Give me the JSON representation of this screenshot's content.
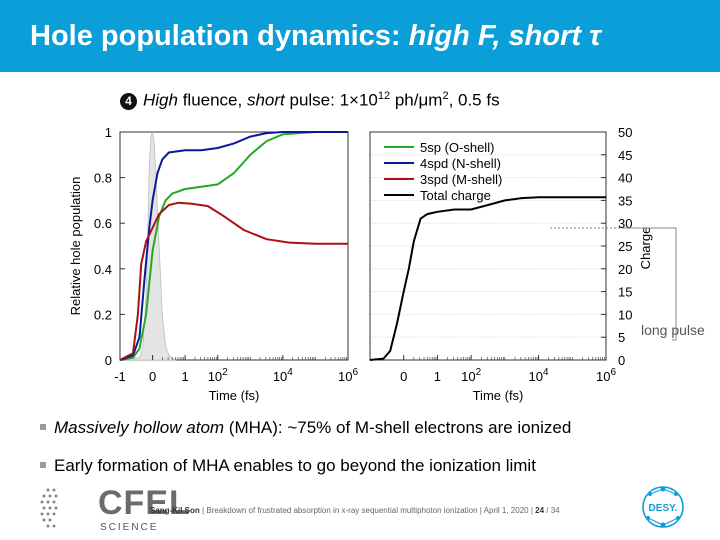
{
  "header": {
    "title_plain": "Hole population dynamics: ",
    "title_italic": "high F, short τ"
  },
  "subtitle": {
    "number": "4",
    "high": "High",
    "fluence": " fluence, ",
    "short": "short",
    "rest1": " pulse: 1×10",
    "exp": "12",
    "rest2": " ph/μm",
    "exp2": "2",
    "rest3": ", 0.5 fs"
  },
  "chart_data": [
    {
      "type": "line",
      "xscale": "log-like (hybrid linear near 0)",
      "xlabel": "Time (fs)",
      "ylabel": "Relative hole population",
      "xticks": [
        "-1",
        "0",
        "1",
        "10",
        "10",
        "10"
      ],
      "xtick_exps": [
        "",
        "",
        "",
        "2",
        "4",
        "6"
      ],
      "yticks": [
        "0",
        "0.2",
        "0.4",
        "0.6",
        "0.8",
        "1"
      ],
      "ylim": [
        0,
        1
      ],
      "grid": false,
      "series": [
        {
          "key": "pulse",
          "color": "#bdbdbd",
          "fill": true,
          "points": [
            [
              -1,
              0
            ],
            [
              -0.4,
              0.01
            ],
            [
              -0.3,
              0.05
            ],
            [
              -0.2,
              0.3
            ],
            [
              -0.15,
              0.55
            ],
            [
              -0.1,
              0.85
            ],
            [
              -0.05,
              0.98
            ],
            [
              0,
              1
            ],
            [
              0.05,
              0.95
            ],
            [
              0.1,
              0.82
            ],
            [
              0.2,
              0.5
            ],
            [
              0.3,
              0.2
            ],
            [
              0.4,
              0.06
            ],
            [
              0.5,
              0.02
            ],
            [
              0.7,
              0
            ]
          ]
        },
        {
          "key": "green",
          "color": "#22aa22",
          "points": [
            [
              -1,
              0
            ],
            [
              -0.6,
              0.01
            ],
            [
              -0.4,
              0.05
            ],
            [
              -0.2,
              0.2
            ],
            [
              0,
              0.48
            ],
            [
              0.2,
              0.63
            ],
            [
              0.4,
              0.7
            ],
            [
              0.6,
              0.73
            ],
            [
              1,
              0.75
            ],
            [
              1.5,
              0.76
            ],
            [
              2,
              0.77
            ],
            [
              2.5,
              0.82
            ],
            [
              3,
              0.9
            ],
            [
              3.5,
              0.96
            ],
            [
              4,
              0.99
            ],
            [
              5,
              1
            ],
            [
              6,
              1
            ]
          ]
        },
        {
          "key": "blue",
          "color": "#0a1a9a",
          "points": [
            [
              -1,
              0
            ],
            [
              -0.6,
              0.02
            ],
            [
              -0.4,
              0.1
            ],
            [
              -0.25,
              0.35
            ],
            [
              -0.1,
              0.58
            ],
            [
              0,
              0.7
            ],
            [
              0.15,
              0.82
            ],
            [
              0.3,
              0.88
            ],
            [
              0.5,
              0.91
            ],
            [
              1,
              0.92
            ],
            [
              1.5,
              0.92
            ],
            [
              2,
              0.93
            ],
            [
              2.5,
              0.95
            ],
            [
              3,
              0.98
            ],
            [
              3.5,
              0.995
            ],
            [
              4,
              1
            ],
            [
              6,
              1
            ]
          ]
        },
        {
          "key": "red",
          "color": "#aa1111",
          "points": [
            [
              -1,
              0
            ],
            [
              -0.6,
              0.03
            ],
            [
              -0.45,
              0.2
            ],
            [
              -0.35,
              0.42
            ],
            [
              -0.2,
              0.52
            ],
            [
              0,
              0.58
            ],
            [
              0.2,
              0.64
            ],
            [
              0.5,
              0.68
            ],
            [
              0.8,
              0.69
            ],
            [
              1.2,
              0.685
            ],
            [
              1.7,
              0.675
            ],
            [
              2.2,
              0.63
            ],
            [
              2.8,
              0.57
            ],
            [
              3.5,
              0.53
            ],
            [
              4.2,
              0.515
            ],
            [
              5,
              0.51
            ],
            [
              6,
              0.51
            ]
          ]
        }
      ]
    },
    {
      "type": "line",
      "xlabel": "Time (fs)",
      "ylabel": "Charge",
      "xticks": [
        "0",
        "1",
        "10",
        "10",
        "10"
      ],
      "xtick_exps": [
        "",
        "",
        "2",
        "4",
        "6"
      ],
      "yticks": [
        "0",
        "5",
        "10",
        "15",
        "20",
        "25",
        "30",
        "35",
        "40",
        "45",
        "50"
      ],
      "ylim": [
        0,
        50
      ],
      "grid": true,
      "legend": {
        "placement": "top-left",
        "entries": [
          {
            "label": "5sp (O-shell)",
            "color": "#22aa22"
          },
          {
            "label": "4spd (N-shell)",
            "color": "#0a1a9a"
          },
          {
            "label": "3spd (M-shell)",
            "color": "#aa1111"
          },
          {
            "label": "Total charge",
            "color": "#000000"
          }
        ]
      },
      "series": [
        {
          "key": "total",
          "color": "#000000",
          "points": [
            [
              -1,
              0
            ],
            [
              -0.6,
              0.3
            ],
            [
              -0.4,
              2
            ],
            [
              -0.2,
              8
            ],
            [
              0,
              15
            ],
            [
              0.15,
              20
            ],
            [
              0.3,
              26
            ],
            [
              0.5,
              31
            ],
            [
              0.7,
              32
            ],
            [
              1,
              32.5
            ],
            [
              1.5,
              33
            ],
            [
              2,
              33
            ],
            [
              2.5,
              34
            ],
            [
              3,
              35
            ],
            [
              3.5,
              35.5
            ],
            [
              4,
              35.7
            ],
            [
              6,
              35.7
            ]
          ]
        }
      ],
      "annotation": "long pulse"
    }
  ],
  "bullets": [
    {
      "italic": "Massively hollow atom",
      "rest": " (MHA): ~75% of M-shell electrons are ionized"
    },
    {
      "italic": "",
      "rest": "Early formation of MHA enables to go beyond the ionization limit"
    }
  ],
  "footer": {
    "author": "Sang-Kil Son",
    "sep1": "  |  ",
    "talk": "Breakdown of frustrated absorption in x-ray sequential multiphoton ionization",
    "sep2": "  |  ",
    "date": "April 1, 2020",
    "sep3": "  |  ",
    "page": "24",
    "total": " / 34"
  },
  "logos": {
    "cfel": "CFEL",
    "science": "SCIENCE",
    "desy": "DESY."
  }
}
